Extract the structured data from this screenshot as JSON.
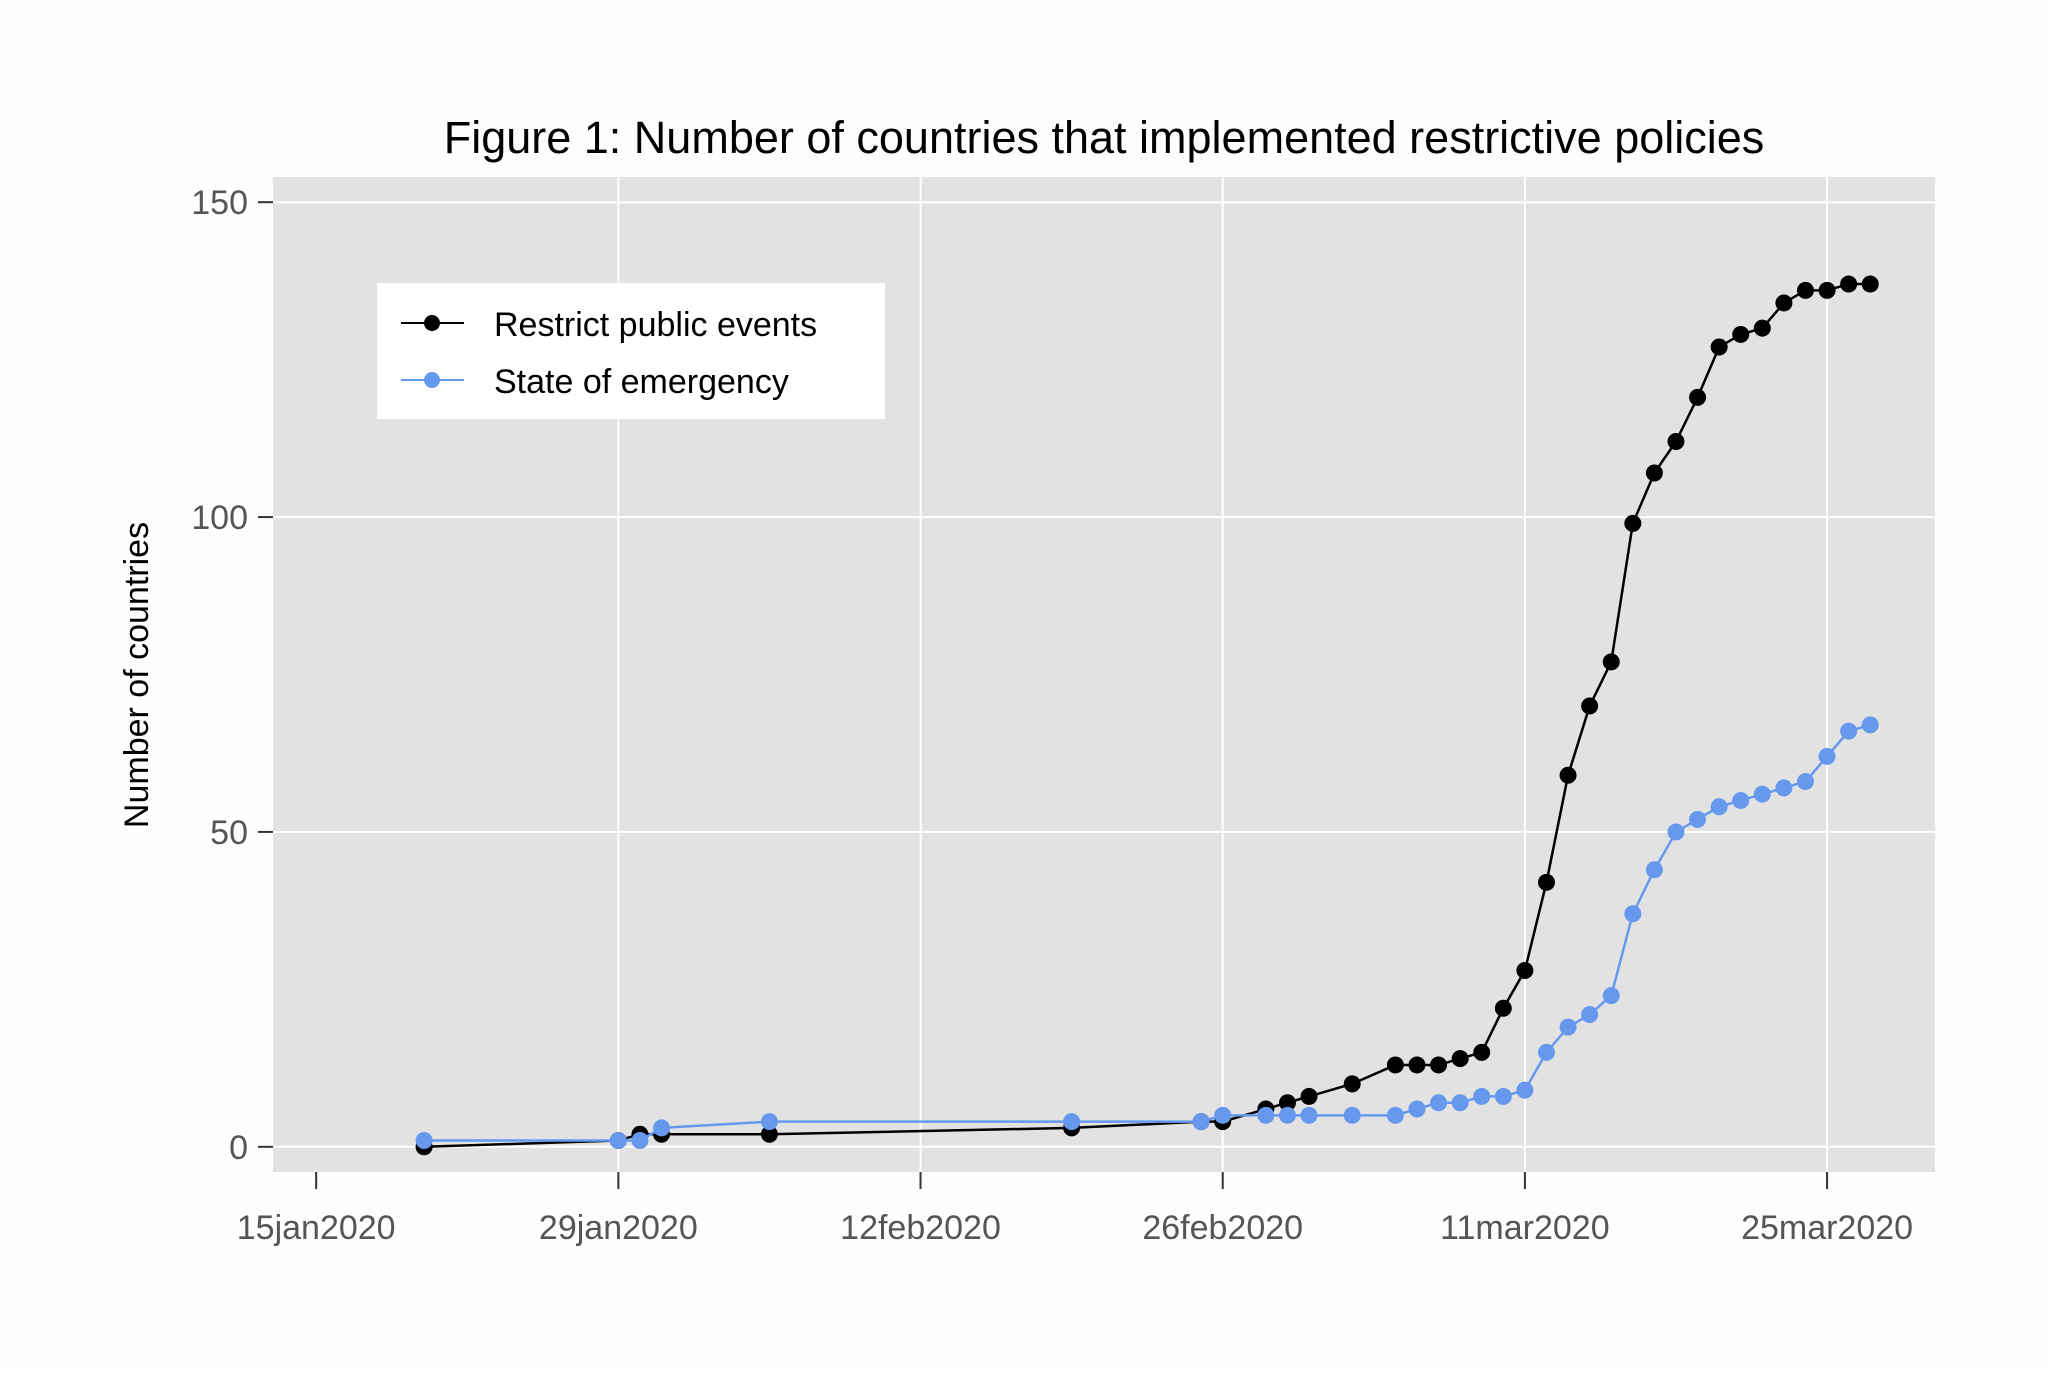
{
  "chart_data": {
    "type": "line",
    "title": "Figure 1: Number of countries that implemented restrictive policies",
    "xlabel": "",
    "ylabel": "Number of countries",
    "x_axis": {
      "range": [
        "2020-01-13",
        "2020-03-30"
      ],
      "ticks": [
        "2020-01-15",
        "2020-01-29",
        "2020-02-12",
        "2020-02-26",
        "2020-03-11",
        "2020-03-25"
      ],
      "tick_labels": [
        "15jan2020",
        "29jan2020",
        "12feb2020",
        "26feb2020",
        "11mar2020",
        "25mar2020"
      ]
    },
    "y_axis": {
      "range": [
        -4,
        154
      ],
      "ticks": [
        0,
        50,
        100,
        150
      ],
      "tick_labels": [
        "0",
        "50",
        "100",
        "150"
      ]
    },
    "grid": true,
    "legend_position": "top-left",
    "series": [
      {
        "name": "Restrict public events",
        "color": "#000000",
        "points": [
          [
            "2020-01-20",
            0
          ],
          [
            "2020-01-29",
            1
          ],
          [
            "2020-01-30",
            2
          ],
          [
            "2020-01-31",
            2
          ],
          [
            "2020-02-05",
            2
          ],
          [
            "2020-02-19",
            3
          ],
          [
            "2020-02-25",
            4
          ],
          [
            "2020-02-26",
            4
          ],
          [
            "2020-02-28",
            6
          ],
          [
            "2020-02-29",
            7
          ],
          [
            "2020-03-01",
            8
          ],
          [
            "2020-03-03",
            10
          ],
          [
            "2020-03-05",
            13
          ],
          [
            "2020-03-06",
            13
          ],
          [
            "2020-03-07",
            13
          ],
          [
            "2020-03-08",
            14
          ],
          [
            "2020-03-09",
            15
          ],
          [
            "2020-03-10",
            22
          ],
          [
            "2020-03-11",
            28
          ],
          [
            "2020-03-12",
            42
          ],
          [
            "2020-03-13",
            59
          ],
          [
            "2020-03-14",
            70
          ],
          [
            "2020-03-15",
            77
          ],
          [
            "2020-03-16",
            99
          ],
          [
            "2020-03-17",
            107
          ],
          [
            "2020-03-18",
            112
          ],
          [
            "2020-03-19",
            119
          ],
          [
            "2020-03-20",
            127
          ],
          [
            "2020-03-21",
            129
          ],
          [
            "2020-03-22",
            130
          ],
          [
            "2020-03-23",
            134
          ],
          [
            "2020-03-24",
            136
          ],
          [
            "2020-03-25",
            136
          ],
          [
            "2020-03-26",
            137
          ],
          [
            "2020-03-27",
            137
          ]
        ]
      },
      {
        "name": "State of emergency",
        "color": "#6699ee",
        "points": [
          [
            "2020-01-20",
            1
          ],
          [
            "2020-01-29",
            1
          ],
          [
            "2020-01-30",
            1
          ],
          [
            "2020-01-31",
            3
          ],
          [
            "2020-02-05",
            4
          ],
          [
            "2020-02-19",
            4
          ],
          [
            "2020-02-25",
            4
          ],
          [
            "2020-02-26",
            5
          ],
          [
            "2020-02-28",
            5
          ],
          [
            "2020-02-29",
            5
          ],
          [
            "2020-03-01",
            5
          ],
          [
            "2020-03-03",
            5
          ],
          [
            "2020-03-05",
            5
          ],
          [
            "2020-03-06",
            6
          ],
          [
            "2020-03-07",
            7
          ],
          [
            "2020-03-08",
            7
          ],
          [
            "2020-03-09",
            8
          ],
          [
            "2020-03-10",
            8
          ],
          [
            "2020-03-11",
            9
          ],
          [
            "2020-03-12",
            15
          ],
          [
            "2020-03-13",
            19
          ],
          [
            "2020-03-14",
            21
          ],
          [
            "2020-03-15",
            24
          ],
          [
            "2020-03-16",
            37
          ],
          [
            "2020-03-17",
            44
          ],
          [
            "2020-03-18",
            50
          ],
          [
            "2020-03-19",
            52
          ],
          [
            "2020-03-20",
            54
          ],
          [
            "2020-03-21",
            55
          ],
          [
            "2020-03-22",
            56
          ],
          [
            "2020-03-23",
            57
          ],
          [
            "2020-03-24",
            58
          ],
          [
            "2020-03-25",
            62
          ],
          [
            "2020-03-26",
            66
          ],
          [
            "2020-03-27",
            67
          ]
        ]
      }
    ]
  }
}
